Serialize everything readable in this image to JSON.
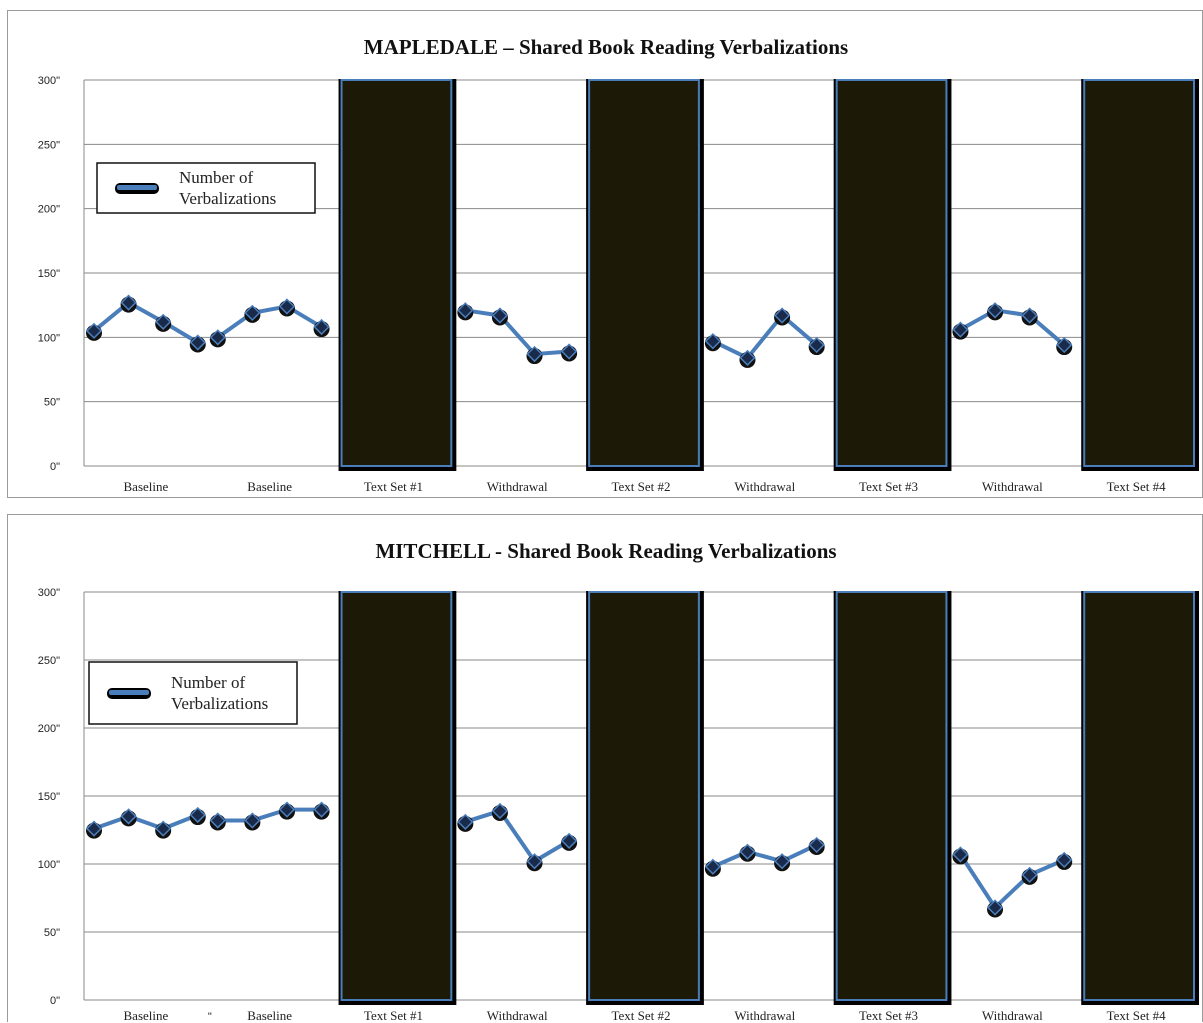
{
  "colors": {
    "series_line": "#4a7ebb",
    "marker": "#111111",
    "bar_fill": "#1c1a07",
    "bar_edge": "#4a7ebb"
  },
  "chart_data": [
    {
      "type": "line",
      "title": "MAPLEDALE – Shared Book Reading Verbalizations",
      "xlabel": "",
      "ylabel": "",
      "ylim": [
        0,
        300
      ],
      "y_ticks": [
        "0\"",
        "50\"",
        "100\"",
        "150\"",
        "200\"",
        "250\"",
        "300\""
      ],
      "y_tick_values": [
        0,
        50,
        100,
        150,
        200,
        250,
        300
      ],
      "grid": true,
      "legend": {
        "placement": "upper-left",
        "label_line1": "Number of",
        "label_line2": "Verbalizations"
      },
      "stray_label": "",
      "phases": [
        {
          "label": "Baseline",
          "kind": "data",
          "values": [
            105,
            127,
            112,
            96
          ]
        },
        {
          "label": "Baseline",
          "kind": "data",
          "values": [
            100,
            119,
            124,
            108
          ]
        },
        {
          "label": "Text Set #1",
          "kind": "block",
          "block_value": 300
        },
        {
          "label": "Withdrawal",
          "kind": "data",
          "values": [
            121,
            117,
            87,
            89
          ]
        },
        {
          "label": "Text Set #2",
          "kind": "block",
          "block_value": 300
        },
        {
          "label": "Withdrawal",
          "kind": "data",
          "values": [
            97,
            84,
            117,
            94
          ]
        },
        {
          "label": "Text Set #3",
          "kind": "block",
          "block_value": 300
        },
        {
          "label": "Withdrawal",
          "kind": "data",
          "values": [
            106,
            121,
            117,
            94
          ]
        },
        {
          "label": "Text Set #4",
          "kind": "block",
          "block_value": 300
        }
      ]
    },
    {
      "type": "line",
      "title": "MITCHELL - Shared Book Reading Verbalizations",
      "xlabel": "",
      "ylabel": "",
      "ylim": [
        0,
        300
      ],
      "y_ticks": [
        "0\"",
        "50\"",
        "100\"",
        "150\"",
        "200\"",
        "250\"",
        "300\""
      ],
      "y_tick_values": [
        0,
        50,
        100,
        150,
        200,
        250,
        300
      ],
      "grid": true,
      "legend": {
        "placement": "upper-left",
        "label_line1": "Number of",
        "label_line2": "Verbalizations"
      },
      "stray_label": "\"",
      "phases": [
        {
          "label": "Baseline",
          "kind": "data",
          "values": [
            126,
            135,
            126,
            136
          ]
        },
        {
          "label": "Baseline",
          "kind": "data",
          "values": [
            132,
            132,
            140,
            140
          ]
        },
        {
          "label": "Text Set #1",
          "kind": "block",
          "block_value": 300
        },
        {
          "label": "Withdrawal",
          "kind": "data",
          "values": [
            131,
            139,
            102,
            117
          ]
        },
        {
          "label": "Text Set #2",
          "kind": "block",
          "block_value": 300
        },
        {
          "label": "Withdrawal",
          "kind": "data",
          "values": [
            98,
            109,
            102,
            114
          ]
        },
        {
          "label": "Text Set #3",
          "kind": "block",
          "block_value": 300
        },
        {
          "label": "Withdrawal",
          "kind": "data",
          "values": [
            107,
            68,
            92,
            103
          ]
        },
        {
          "label": "Text Set #4",
          "kind": "block",
          "block_value": 300
        }
      ]
    }
  ]
}
